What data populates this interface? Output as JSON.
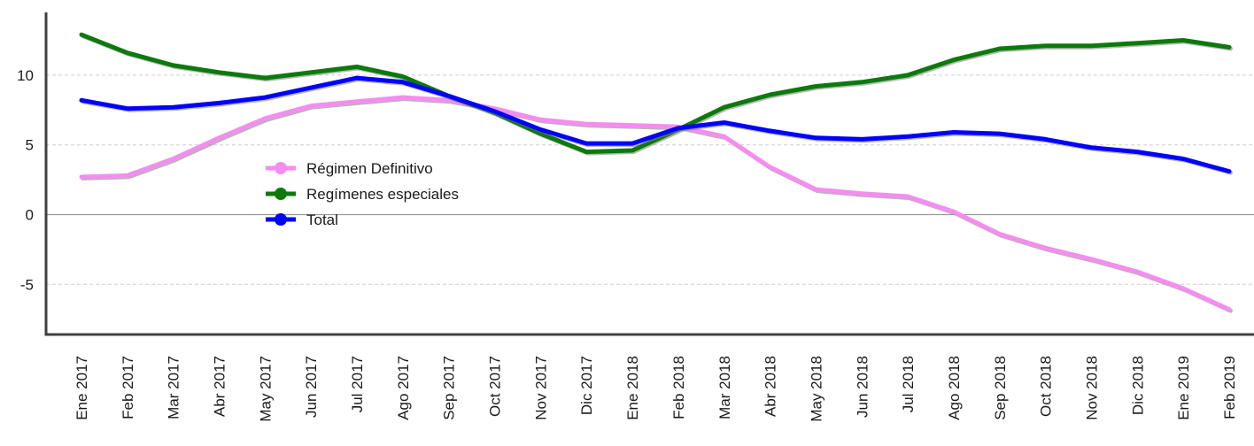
{
  "chart_data": {
    "type": "line",
    "title": "",
    "xlabel": "",
    "ylabel": "",
    "ylim": [
      -8.6,
      14.5
    ],
    "yticks": [
      -5,
      0,
      5,
      10
    ],
    "grid": true,
    "legend_position": "center-left",
    "categories": [
      "Ene 2017",
      "Feb 2017",
      "Mar 2017",
      "Abr 2017",
      "May 2017",
      "Jun 2017",
      "Jul 2017",
      "Ago 2017",
      "Sep 2017",
      "Oct 2017",
      "Nov 2017",
      "Dic 2017",
      "Ene 2018",
      "Feb 2018",
      "Mar 2018",
      "Abr 2018",
      "May 2018",
      "Jun 2018",
      "Jul 2018",
      "Ago 2018",
      "Sep 2018",
      "Oct 2018",
      "Nov 2018",
      "Dic 2018",
      "Ene 2019",
      "Feb 2019"
    ],
    "series": [
      {
        "name": "Régimen Definitivo",
        "color": "#f58df0",
        "values": [
          2.7,
          2.8,
          4.0,
          5.5,
          6.9,
          7.8,
          8.1,
          8.4,
          8.2,
          7.6,
          6.8,
          6.5,
          6.4,
          6.3,
          5.6,
          3.4,
          1.8,
          1.5,
          1.3,
          0.2,
          -1.4,
          -2.4,
          -3.2,
          -4.1,
          -5.3,
          -6.8
        ]
      },
      {
        "name": "Regímenes especiales",
        "color": "#0b7a0b",
        "values": [
          12.9,
          11.6,
          10.7,
          10.2,
          9.8,
          10.2,
          10.6,
          9.9,
          8.5,
          7.3,
          5.8,
          4.5,
          4.6,
          6.1,
          7.7,
          8.6,
          9.2,
          9.5,
          10.0,
          11.1,
          11.9,
          12.1,
          12.1,
          12.3,
          12.5,
          12.0
        ]
      },
      {
        "name": "Total",
        "color": "#0000ff",
        "values": [
          8.2,
          7.6,
          7.7,
          8.0,
          8.4,
          9.1,
          9.8,
          9.5,
          8.5,
          7.4,
          6.1,
          5.1,
          5.1,
          6.2,
          6.6,
          6.0,
          5.5,
          5.4,
          5.6,
          5.9,
          5.8,
          5.4,
          4.8,
          4.5,
          4.0,
          3.1
        ]
      }
    ]
  }
}
